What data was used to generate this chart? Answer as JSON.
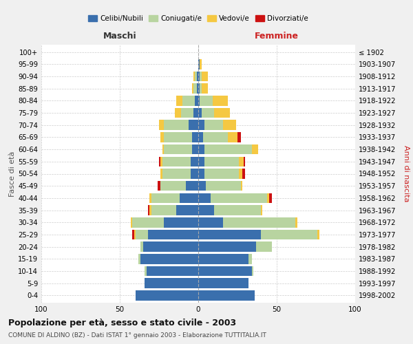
{
  "age_groups": [
    "0-4",
    "5-9",
    "10-14",
    "15-19",
    "20-24",
    "25-29",
    "30-34",
    "35-39",
    "40-44",
    "45-49",
    "50-54",
    "55-59",
    "60-64",
    "65-69",
    "70-74",
    "75-79",
    "80-84",
    "85-89",
    "90-94",
    "95-99",
    "100+"
  ],
  "birth_years": [
    "1998-2002",
    "1993-1997",
    "1988-1992",
    "1983-1987",
    "1978-1982",
    "1973-1977",
    "1968-1972",
    "1963-1967",
    "1958-1962",
    "1953-1957",
    "1948-1952",
    "1943-1947",
    "1938-1942",
    "1933-1937",
    "1928-1932",
    "1923-1927",
    "1918-1922",
    "1913-1917",
    "1908-1912",
    "1903-1907",
    "≤ 1902"
  ],
  "males": {
    "celibe": [
      40,
      34,
      33,
      37,
      35,
      32,
      22,
      14,
      12,
      8,
      5,
      5,
      4,
      4,
      6,
      3,
      2,
      1,
      1,
      0,
      0
    ],
    "coniugato": [
      0,
      0,
      1,
      1,
      2,
      8,
      20,
      16,
      18,
      16,
      18,
      18,
      18,
      18,
      16,
      8,
      8,
      2,
      1,
      0,
      0
    ],
    "vedovo": [
      0,
      0,
      0,
      0,
      0,
      1,
      1,
      1,
      1,
      0,
      1,
      1,
      1,
      2,
      3,
      4,
      4,
      1,
      1,
      0,
      0
    ],
    "divorziato": [
      0,
      0,
      0,
      0,
      0,
      1,
      0,
      1,
      0,
      2,
      0,
      1,
      0,
      0,
      0,
      0,
      0,
      0,
      0,
      0,
      0
    ]
  },
  "females": {
    "nubile": [
      36,
      32,
      34,
      32,
      37,
      40,
      16,
      10,
      8,
      5,
      4,
      4,
      4,
      3,
      4,
      2,
      1,
      1,
      1,
      1,
      0
    ],
    "coniugata": [
      0,
      0,
      1,
      2,
      10,
      36,
      46,
      30,
      36,
      22,
      22,
      22,
      30,
      16,
      12,
      8,
      8,
      1,
      1,
      0,
      0
    ],
    "vedova": [
      0,
      0,
      0,
      0,
      0,
      1,
      1,
      1,
      1,
      1,
      2,
      3,
      4,
      6,
      8,
      10,
      10,
      4,
      4,
      1,
      0
    ],
    "divorziata": [
      0,
      0,
      0,
      0,
      0,
      0,
      0,
      0,
      2,
      0,
      2,
      1,
      0,
      2,
      0,
      0,
      0,
      0,
      0,
      0,
      0
    ]
  },
  "colors": {
    "celibe": "#3a6fad",
    "coniugato": "#b8d4a0",
    "vedovo": "#f5c842",
    "divorziato": "#cc1111"
  },
  "legend_labels": [
    "Celibi/Nubili",
    "Coniugati/e",
    "Vedovi/e",
    "Divorziati/e"
  ],
  "title_main": "Popolazione per età, sesso e stato civile - 2003",
  "title_sub": "COMUNE DI ALDINO (BZ) - Dati ISTAT 1° gennaio 2003 - Elaborazione TUTTITALIA.IT",
  "xlabel_left": "Maschi",
  "xlabel_right": "Femmine",
  "ylabel_left": "Fasce di età",
  "ylabel_right": "Anni di nascita",
  "xlim": 100,
  "bg_color": "#f0f0f0",
  "plot_bg": "#ffffff",
  "grid_color": "#cccccc"
}
